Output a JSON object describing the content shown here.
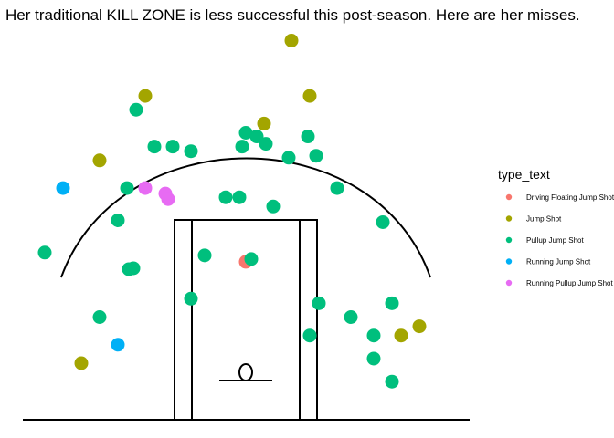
{
  "chart_data": {
    "type": "scatter",
    "title": "Her traditional KILL ZONE is less successful this post-season. Here are her misses.",
    "xlabel": "",
    "ylabel": "",
    "xlim": [
      -25,
      25
    ],
    "ylim": [
      0,
      42
    ],
    "grid": false,
    "legend_position": "right",
    "legend": {
      "title": "type_text",
      "entries": [
        {
          "label": "Driving Floating Jump Shot",
          "color": "#F8766D"
        },
        {
          "label": "Jump Shot",
          "color": "#A3A500"
        },
        {
          "label": "Pullup Jump Shot",
          "color": "#00BF7D"
        },
        {
          "label": "Running Jump Shot",
          "color": "#00B0F6"
        },
        {
          "label": "Running Pullup Jump Shot",
          "color": "#E76BF3"
        }
      ]
    },
    "series": [
      {
        "name": "Driving Floating Jump Shot",
        "color": "#F8766D",
        "points": [
          [
            0.0,
            17.0
          ]
        ]
      },
      {
        "name": "Jump Shot",
        "color": "#A3A500",
        "points": [
          [
            5.0,
            41.0
          ],
          [
            -11.0,
            35.0
          ],
          [
            7.0,
            35.0
          ],
          [
            2.0,
            32.0
          ],
          [
            -16.0,
            28.0
          ],
          [
            17.0,
            9.0
          ],
          [
            19.0,
            10.0
          ],
          [
            -18.0,
            6.0
          ]
        ]
      },
      {
        "name": "Pullup Jump Shot",
        "color": "#00BF7D",
        "points": [
          [
            -12.0,
            33.5
          ],
          [
            0.0,
            31.0
          ],
          [
            1.2,
            30.6
          ],
          [
            6.8,
            30.6
          ],
          [
            2.2,
            29.8
          ],
          [
            -10.0,
            29.5
          ],
          [
            -8.0,
            29.5
          ],
          [
            -0.4,
            29.5
          ],
          [
            -6.0,
            29.0
          ],
          [
            4.7,
            28.3
          ],
          [
            7.7,
            28.5
          ],
          [
            -13.0,
            25.0
          ],
          [
            10.0,
            25.0
          ],
          [
            -2.2,
            24.0
          ],
          [
            -0.7,
            24.0
          ],
          [
            3.0,
            23.0
          ],
          [
            -14.0,
            21.5
          ],
          [
            15.0,
            21.3
          ],
          [
            -22.0,
            18.0
          ],
          [
            -4.5,
            17.7
          ],
          [
            0.6,
            17.3
          ],
          [
            -12.8,
            16.2
          ],
          [
            -12.3,
            16.3
          ],
          [
            -6.0,
            13.0
          ],
          [
            8.0,
            12.5
          ],
          [
            16.0,
            12.5
          ],
          [
            -16.0,
            11.0
          ],
          [
            11.5,
            11.0
          ],
          [
            7.0,
            9.0
          ],
          [
            14.0,
            9.0
          ],
          [
            14.0,
            6.5
          ],
          [
            16.0,
            4.0
          ]
        ]
      },
      {
        "name": "Running Jump Shot",
        "color": "#00B0F6",
        "points": [
          [
            -20.0,
            25.0
          ],
          [
            -14.0,
            8.0
          ]
        ]
      },
      {
        "name": "Running Pullup Jump Shot",
        "color": "#E76BF3",
        "points": [
          [
            -11.0,
            25.0
          ],
          [
            -8.8,
            24.4
          ],
          [
            -8.5,
            23.8
          ]
        ]
      }
    ]
  }
}
